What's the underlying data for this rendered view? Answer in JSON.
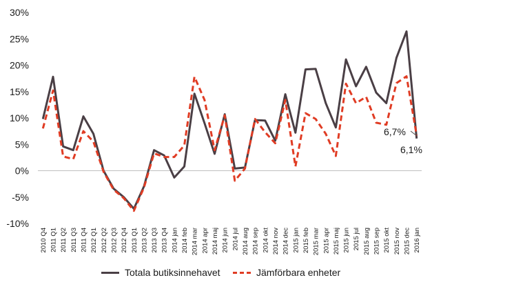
{
  "chart_data": {
    "type": "line",
    "title": "",
    "xlabel": "",
    "ylabel": "",
    "ylim": [
      -10,
      30
    ],
    "yticks": [
      -10,
      -5,
      0,
      5,
      10,
      15,
      20,
      25,
      30
    ],
    "ytick_labels": [
      "-10%",
      "-5%",
      "0%",
      "5%",
      "10%",
      "15%",
      "20%",
      "25%",
      "30%"
    ],
    "grid": false,
    "legend_position": "bottom",
    "categories": [
      "2010 Q4",
      "2011 Q1",
      "2011 Q2",
      "2011 Q3",
      "2011 Q4",
      "2012 Q1",
      "2012 Q2",
      "2012 Q3",
      "2012 Q4",
      "2013 Q1",
      "2013 Q2",
      "2013 Q3",
      "2013 Q4",
      "2014 jan",
      "2014 feb",
      "2014 mar",
      "2014 apr",
      "2014 maj",
      "2014 jun",
      "2014 jul",
      "2014 aug",
      "2014 sep",
      "2014 okt",
      "2014 nov",
      "2014 dec",
      "2015 jan",
      "2015 feb",
      "2015 mar",
      "2015 apr",
      "2015 maj",
      "2015 jun",
      "2015 jul",
      "2015 aug",
      "2015 sep",
      "2015 okt",
      "2015 nov",
      "2015 dec",
      "2016 jan"
    ],
    "series": [
      {
        "name": "Totala butiksinnehavet",
        "color": "#4a3f45",
        "style": "solid",
        "values": [
          9.8,
          17.8,
          4.6,
          3.9,
          10.3,
          7.0,
          0.0,
          -3.4,
          -5.0,
          -7.2,
          -3.0,
          3.9,
          2.9,
          -1.3,
          0.8,
          14.6,
          9.0,
          3.2,
          10.7,
          0.4,
          0.6,
          9.6,
          9.5,
          5.7,
          14.5,
          7.2,
          19.2,
          19.3,
          12.8,
          8.2,
          21.1,
          16.0,
          19.7,
          14.8,
          12.8,
          21.4,
          26.4,
          6.1
        ]
      },
      {
        "name": "Jämförbara enheter",
        "color": "#e03c24",
        "style": "dashed",
        "values": [
          8.0,
          15.2,
          2.7,
          2.2,
          7.5,
          5.5,
          -0.2,
          -3.6,
          -5.2,
          -7.6,
          -3.2,
          3.3,
          2.6,
          2.6,
          4.8,
          17.8,
          13.4,
          3.9,
          10.5,
          -1.9,
          0.4,
          9.8,
          7.3,
          5.2,
          13.4,
          0.8,
          10.9,
          9.8,
          7.0,
          2.8,
          16.5,
          12.8,
          14.0,
          9.1,
          8.7,
          16.6,
          17.9,
          6.7
        ]
      }
    ],
    "annotations": [
      {
        "text": "6,7%",
        "series": "Jämförbara enheter",
        "category": "2016 jan"
      },
      {
        "text": "6,1%",
        "series": "Totala butiksinnehavet",
        "category": "2016 jan"
      }
    ]
  }
}
